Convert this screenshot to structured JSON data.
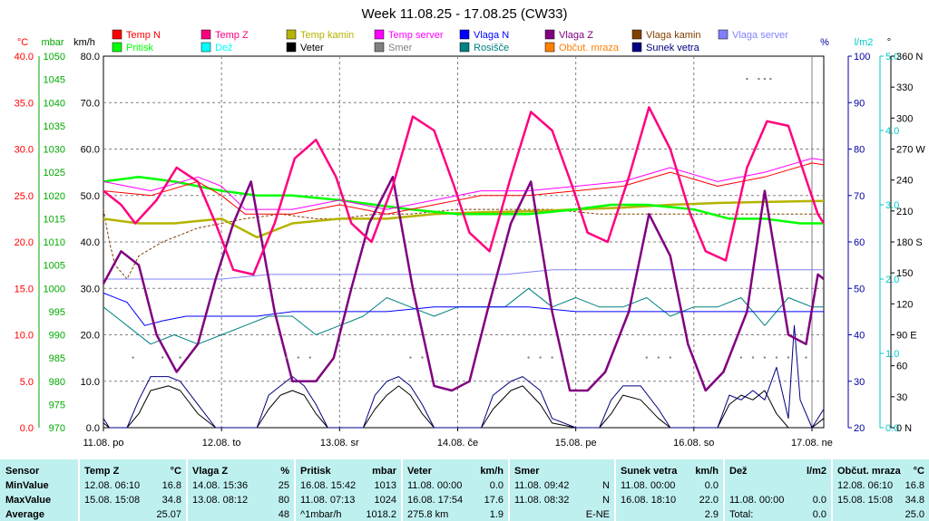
{
  "title": "Week 11.08.25 - 17.08.25 (CW33)",
  "colors": {
    "grid": "#808080",
    "plot_bg": "#ffffff",
    "panel_bg": "#bff0f0"
  },
  "axes": {
    "left": [
      {
        "unit": "°C",
        "color": "#ff0000",
        "ticks": [
          "40.0",
          "35.0",
          "30.0",
          "25.0",
          "20.0",
          "15.0",
          "10.0",
          "5.0",
          "0.0"
        ]
      },
      {
        "unit": "mbar",
        "color": "#00aa00",
        "ticks": [
          "1050",
          "1045",
          "1040",
          "1035",
          "1030",
          "1025",
          "1020",
          "1015",
          "1010",
          "1005",
          "1000",
          "995",
          "990",
          "985",
          "980",
          "975",
          "970"
        ]
      },
      {
        "unit": "km/h",
        "color": "#000000",
        "ticks": [
          "80.0",
          "70.0",
          "60.0",
          "50.0",
          "40.0",
          "30.0",
          "20.0",
          "10.0",
          "0.0"
        ]
      }
    ],
    "right": [
      {
        "unit": "%",
        "color": "#0000a0",
        "ticks": [
          "100",
          "90",
          "80",
          "70",
          "60",
          "50",
          "40",
          "30",
          "20"
        ]
      },
      {
        "unit": "l/m2",
        "color": "#00c8c8",
        "ticks": [
          "5.0",
          "4.0",
          "3.0",
          "2.0",
          "1.0",
          "0.0"
        ]
      },
      {
        "unit": "°",
        "color": "#000000",
        "ticks": [
          "360 N",
          "330",
          "300",
          "270 W",
          "240",
          "210",
          "180 S",
          "150",
          "120",
          "90 E",
          "60",
          "30",
          "0 N"
        ]
      }
    ],
    "x_ticks": [
      "11.08. po",
      "12.08. to",
      "13.08. sr",
      "14.08. če",
      "15.08. pe",
      "16.08. so",
      "17.08. ne"
    ]
  },
  "legend": [
    {
      "name": "Temp N",
      "color": "#ff0000"
    },
    {
      "name": "Temp Z",
      "color": "#ff0080"
    },
    {
      "name": "Temp kamin",
      "color": "#b4b400"
    },
    {
      "name": "Temp server",
      "color": "#ff00ff"
    },
    {
      "name": "Vlaga N",
      "color": "#0000ff"
    },
    {
      "name": "Vlaga Z",
      "color": "#800080"
    },
    {
      "name": "Vlaga kamin",
      "color": "#804000"
    },
    {
      "name": "Vlaga server",
      "color": "#8080ff"
    },
    {
      "name": "Pritisk",
      "color": "#00ff00"
    },
    {
      "name": "Dež",
      "color": "#00ffff"
    },
    {
      "name": "Veter",
      "color": "#000000"
    },
    {
      "name": "Smer",
      "color": "#808080"
    },
    {
      "name": "Rosišče",
      "color": "#008080"
    },
    {
      "name": "Občut. mraza",
      "color": "#ff8000"
    },
    {
      "name": "Sunek vetra",
      "color": "#000080"
    }
  ],
  "chart_data": {
    "type": "line",
    "title": "Week 11.08.25 - 17.08.25 (CW33)",
    "x": [
      "11.08. po",
      "12.08. to",
      "13.08. sr",
      "14.08. če",
      "15.08. pe",
      "16.08. so",
      "17.08. ne"
    ],
    "x_days_range": [
      0,
      6.1
    ],
    "y_left_temp_lim": [
      0,
      40
    ],
    "y_pressure_lim": [
      970,
      1050
    ],
    "y_wind_lim": [
      0,
      80
    ],
    "y_humidity_lim": [
      20,
      100
    ],
    "y_rain_lim": [
      0,
      5
    ],
    "y_direction_lim": [
      0,
      360
    ],
    "grid": true,
    "series": [
      {
        "name": "Temp Z",
        "axis": "temp",
        "color": "#ff0080",
        "x": [
          0,
          0.15,
          0.27,
          0.45,
          0.62,
          0.8,
          0.95,
          1.1,
          1.27,
          1.45,
          1.62,
          1.8,
          1.97,
          2.1,
          2.27,
          2.45,
          2.62,
          2.8,
          2.97,
          3.1,
          3.27,
          3.45,
          3.62,
          3.8,
          3.97,
          4.1,
          4.27,
          4.45,
          4.62,
          4.8,
          4.97,
          5.1,
          5.27,
          5.45,
          5.62,
          5.8,
          5.97,
          6.05,
          6.1
        ],
        "values": [
          25.5,
          24,
          22,
          24.5,
          28,
          26.5,
          22,
          17,
          16.5,
          22,
          29,
          31,
          27,
          22,
          20,
          26,
          33.5,
          32,
          26,
          21,
          19,
          27,
          34,
          32,
          26,
          21,
          20,
          27,
          34.5,
          30,
          23,
          19,
          18,
          28,
          33,
          32.5,
          26,
          23,
          22
        ]
      },
      {
        "name": "Temp N",
        "axis": "temp",
        "color": "#ff0000",
        "x": [
          0,
          0.4,
          0.8,
          1.0,
          1.2,
          1.6,
          2.0,
          2.4,
          2.8,
          3.2,
          3.6,
          4.0,
          4.4,
          4.8,
          5.2,
          5.6,
          6.0,
          6.1
        ],
        "values": [
          25.5,
          25,
          26.5,
          25,
          23,
          23,
          24,
          23,
          24,
          25,
          25,
          25.5,
          26,
          27.5,
          26,
          27,
          28.5,
          28.3
        ]
      },
      {
        "name": "Temp server",
        "axis": "temp",
        "color": "#ff00ff",
        "x": [
          0,
          0.4,
          0.8,
          1.0,
          1.2,
          1.6,
          2.0,
          2.4,
          2.8,
          3.2,
          3.6,
          4.0,
          4.4,
          4.8,
          5.2,
          5.6,
          6.0,
          6.1
        ],
        "values": [
          26.5,
          25.5,
          27,
          26,
          23.5,
          23.5,
          24.5,
          23.5,
          24.5,
          25.5,
          25.5,
          26,
          26.5,
          28,
          26.5,
          27.5,
          29,
          28.8
        ]
      },
      {
        "name": "Temp kamin",
        "axis": "temp",
        "color": "#b4b400",
        "x": [
          0,
          0.3,
          0.6,
          1.0,
          1.15,
          1.3,
          1.6,
          2.0,
          2.4,
          2.8,
          3.2,
          3.6,
          4.0,
          4.4,
          4.8,
          5.2,
          5.6,
          6.0,
          6.1
        ],
        "values": [
          22.5,
          22,
          22,
          22.5,
          21.5,
          20.5,
          22,
          22.5,
          22.5,
          23,
          23.2,
          23.3,
          23.5,
          23.7,
          24,
          24.2,
          24.3,
          24.4,
          24.4
        ]
      },
      {
        "name": "Pritisk",
        "axis": "pressure",
        "color": "#00ff00",
        "x": [
          0,
          0.3,
          0.6,
          0.8,
          1.0,
          1.3,
          1.6,
          2.0,
          2.3,
          2.6,
          3.0,
          3.3,
          3.6,
          4.0,
          4.3,
          4.6,
          5.0,
          5.3,
          5.6,
          5.9,
          6.1
        ],
        "values": [
          1023,
          1024,
          1023,
          1022,
          1021,
          1020,
          1020,
          1019,
          1018,
          1017,
          1016,
          1016,
          1016,
          1017,
          1018,
          1018,
          1017,
          1015,
          1015,
          1014,
          1014
        ]
      },
      {
        "name": "Vlaga Z",
        "axis": "humidity",
        "color": "#800080",
        "x": [
          0,
          0.15,
          0.3,
          0.45,
          0.62,
          0.8,
          0.95,
          1.1,
          1.25,
          1.45,
          1.6,
          1.8,
          1.95,
          2.1,
          2.25,
          2.45,
          2.62,
          2.8,
          2.95,
          3.1,
          3.25,
          3.45,
          3.62,
          3.8,
          3.95,
          4.1,
          4.25,
          4.45,
          4.62,
          4.8,
          4.95,
          5.1,
          5.25,
          5.45,
          5.6,
          5.8,
          5.95,
          6.05,
          6.1
        ],
        "values": [
          51,
          58,
          55,
          40,
          32,
          38,
          52,
          64,
          73,
          45,
          30,
          30,
          35,
          50,
          64,
          74,
          50,
          29,
          28,
          30,
          45,
          64,
          73,
          45,
          28,
          28,
          32,
          45,
          66,
          57,
          38,
          28,
          32,
          45,
          71,
          40,
          38,
          53,
          52
        ]
      },
      {
        "name": "Vlaga N",
        "axis": "humidity",
        "color": "#0000ff",
        "x": [
          0,
          0.2,
          0.35,
          0.5,
          0.7,
          0.9,
          1.1,
          1.3,
          1.6,
          2.0,
          2.4,
          2.8,
          3.2,
          3.6,
          4.0,
          4.4,
          4.8,
          5.2,
          5.6,
          6.0,
          6.1
        ],
        "values": [
          49,
          47,
          42,
          43,
          44,
          44,
          44,
          44,
          45,
          45,
          45,
          46,
          46,
          46,
          45,
          45,
          45,
          45,
          45,
          45,
          45
        ]
      },
      {
        "name": "Vlaga server",
        "axis": "humidity",
        "color": "#8080ff",
        "x": [
          0,
          0.3,
          0.6,
          1.0,
          1.4,
          1.8,
          2.2,
          2.6,
          3.0,
          3.4,
          3.8,
          4.2,
          4.6,
          5.0,
          5.4,
          5.8,
          6.1
        ],
        "values": [
          52,
          52,
          52,
          52,
          53,
          53,
          53,
          53,
          53,
          53,
          54,
          54,
          54,
          54,
          54,
          54,
          54
        ]
      },
      {
        "name": "Rosišče",
        "axis": "temp",
        "color": "#008080",
        "x": [
          0,
          0.2,
          0.4,
          0.6,
          0.8,
          1.0,
          1.2,
          1.4,
          1.6,
          1.8,
          2.0,
          2.2,
          2.4,
          2.6,
          2.8,
          3.0,
          3.2,
          3.4,
          3.6,
          3.8,
          4.0,
          4.2,
          4.4,
          4.6,
          4.8,
          5.0,
          5.2,
          5.4,
          5.6,
          5.8,
          6.0,
          6.1
        ],
        "values": [
          13,
          11,
          9,
          10,
          9,
          10,
          11,
          12,
          12,
          10,
          11,
          12,
          14,
          13,
          12,
          13,
          13,
          13,
          15,
          13,
          14,
          13,
          13,
          14,
          12,
          13,
          13,
          14,
          11,
          14,
          13,
          13
        ]
      },
      {
        "name": "Vlaga kamin",
        "axis": "humidity",
        "color": "#804000",
        "x": [
          0,
          0.05,
          0.1,
          0.2,
          0.3,
          0.5,
          0.8,
          1.0,
          1.2,
          1.5,
          1.8,
          2.0,
          2.3,
          2.6,
          3.0,
          3.4,
          3.8,
          4.2,
          4.6,
          5.0,
          5.4,
          5.8,
          6.1
        ],
        "values": [
          67,
          60,
          55,
          52,
          57,
          60,
          63,
          64,
          65,
          66,
          65,
          65,
          66,
          66,
          67,
          67,
          67,
          66,
          66,
          66,
          66,
          66,
          66
        ]
      },
      {
        "name": "Veter",
        "axis": "wind",
        "color": "#000000",
        "x": [
          0,
          0.05,
          0.2,
          0.3,
          0.4,
          0.55,
          0.65,
          0.8,
          0.95,
          1.1,
          1.3,
          1.4,
          1.5,
          1.6,
          1.7,
          1.8,
          1.9,
          2.0,
          2.2,
          2.3,
          2.4,
          2.5,
          2.6,
          2.7,
          2.8,
          3.0,
          3.2,
          3.3,
          3.45,
          3.55,
          3.7,
          3.8,
          4.0,
          4.2,
          4.3,
          4.4,
          4.55,
          4.7,
          4.8,
          5.0,
          5.2,
          5.3,
          5.4,
          5.5,
          5.6,
          5.7,
          5.8,
          6.0,
          6.1
        ],
        "values": [
          1,
          0,
          0,
          3,
          8,
          9,
          8,
          3,
          0,
          0,
          0,
          4,
          7,
          8,
          7,
          3,
          0,
          0,
          0,
          4,
          7,
          9,
          7,
          3,
          0,
          0,
          0,
          4,
          8,
          9,
          5,
          1,
          0,
          0,
          3,
          7,
          6,
          2,
          0,
          0,
          0,
          5,
          7,
          6,
          8,
          3,
          0,
          0,
          2
        ]
      },
      {
        "name": "Sunek vetra",
        "axis": "wind",
        "color": "#000080",
        "x": [
          0,
          0.05,
          0.2,
          0.3,
          0.4,
          0.55,
          0.65,
          0.8,
          0.95,
          1.1,
          1.3,
          1.4,
          1.5,
          1.6,
          1.7,
          1.8,
          1.9,
          2.0,
          2.2,
          2.3,
          2.4,
          2.5,
          2.6,
          2.7,
          2.8,
          3.0,
          3.2,
          3.3,
          3.45,
          3.55,
          3.7,
          3.8,
          4.0,
          4.2,
          4.3,
          4.4,
          4.55,
          4.7,
          4.8,
          5.0,
          5.2,
          5.3,
          5.4,
          5.5,
          5.6,
          5.7,
          5.8,
          5.85,
          5.9,
          6.0,
          6.1
        ],
        "values": [
          2,
          0,
          0,
          6,
          11,
          11,
          10,
          5,
          0,
          0,
          0,
          7,
          9,
          11,
          9,
          5,
          0,
          0,
          0,
          7,
          10,
          11,
          9,
          5,
          0,
          0,
          0,
          7,
          10,
          11,
          8,
          2,
          0,
          0,
          6,
          9,
          9,
          4,
          0,
          0,
          0,
          7,
          6,
          8,
          6,
          13,
          2,
          22,
          6,
          0,
          4
        ]
      },
      {
        "name": "Smer",
        "axis": "direction",
        "color": "#808080",
        "style": "dots",
        "x": [
          0.25,
          0.5,
          0.65,
          1.55,
          1.65,
          1.75,
          2.6,
          2.7,
          3.6,
          3.7,
          3.8,
          4.6,
          4.7,
          4.8,
          5.4,
          5.5,
          5.6,
          5.7,
          5.8,
          5.95,
          5.45,
          5.55,
          5.6,
          5.65
        ],
        "values": [
          68,
          68,
          68,
          68,
          68,
          68,
          68,
          68,
          68,
          68,
          68,
          68,
          68,
          68,
          68,
          68,
          68,
          68,
          68,
          68,
          338,
          338,
          338,
          338
        ]
      }
    ]
  },
  "stats_panel": {
    "row_labels": [
      "Sensor",
      "MinValue",
      "MaxValue",
      "Average"
    ],
    "columns": [
      {
        "sensor": "Temp Z",
        "unit": "°C",
        "min": [
          "12.08.  06:10",
          "16.8"
        ],
        "max": [
          "15.08.  15:08",
          "34.8"
        ],
        "avg": [
          "",
          "25.07"
        ]
      },
      {
        "sensor": "Vlaga Z",
        "unit": "%",
        "min": [
          "14.08.  15:36",
          "25"
        ],
        "max": [
          "13.08.  08:12",
          "80"
        ],
        "avg": [
          "",
          "48"
        ]
      },
      {
        "sensor": "Pritisk",
        "unit": "mbar",
        "min": [
          "16.08.  15:42",
          "1013"
        ],
        "max": [
          "11.08.  07:13",
          "1024"
        ],
        "avg": [
          "^1mbar/h",
          "1018.2"
        ]
      },
      {
        "sensor": "Veter",
        "unit": "km/h",
        "min": [
          "11.08.  00:00",
          "0.0"
        ],
        "max": [
          "16.08.  17:54",
          "17.6"
        ],
        "avg": [
          "275.8 km",
          "1.9"
        ]
      },
      {
        "sensor": "Smer",
        "unit": "",
        "min": [
          "11.08.  09:42",
          "N"
        ],
        "max": [
          "11.08.  08:32",
          "N"
        ],
        "avg": [
          "",
          "E-NE"
        ]
      },
      {
        "sensor": "Sunek  vetra",
        "unit": "km/h",
        "min": [
          "11.08.  00:00",
          "0.0"
        ],
        "max": [
          "16.08.  18:10",
          "22.0"
        ],
        "avg": [
          "",
          "2.9"
        ]
      },
      {
        "sensor": "Dež",
        "unit": "l/m2",
        "min": [
          "",
          ""
        ],
        "max": [
          "11.08.  00:00",
          "0.0"
        ],
        "avg": [
          "Total:",
          "0.0"
        ]
      },
      {
        "sensor": "Občut.  mraza",
        "unit": "°C",
        "min": [
          "12.08.  06:10",
          "16.8"
        ],
        "max": [
          "15.08.  15:08",
          "34.8"
        ],
        "avg": [
          "",
          "25.0"
        ]
      }
    ]
  }
}
